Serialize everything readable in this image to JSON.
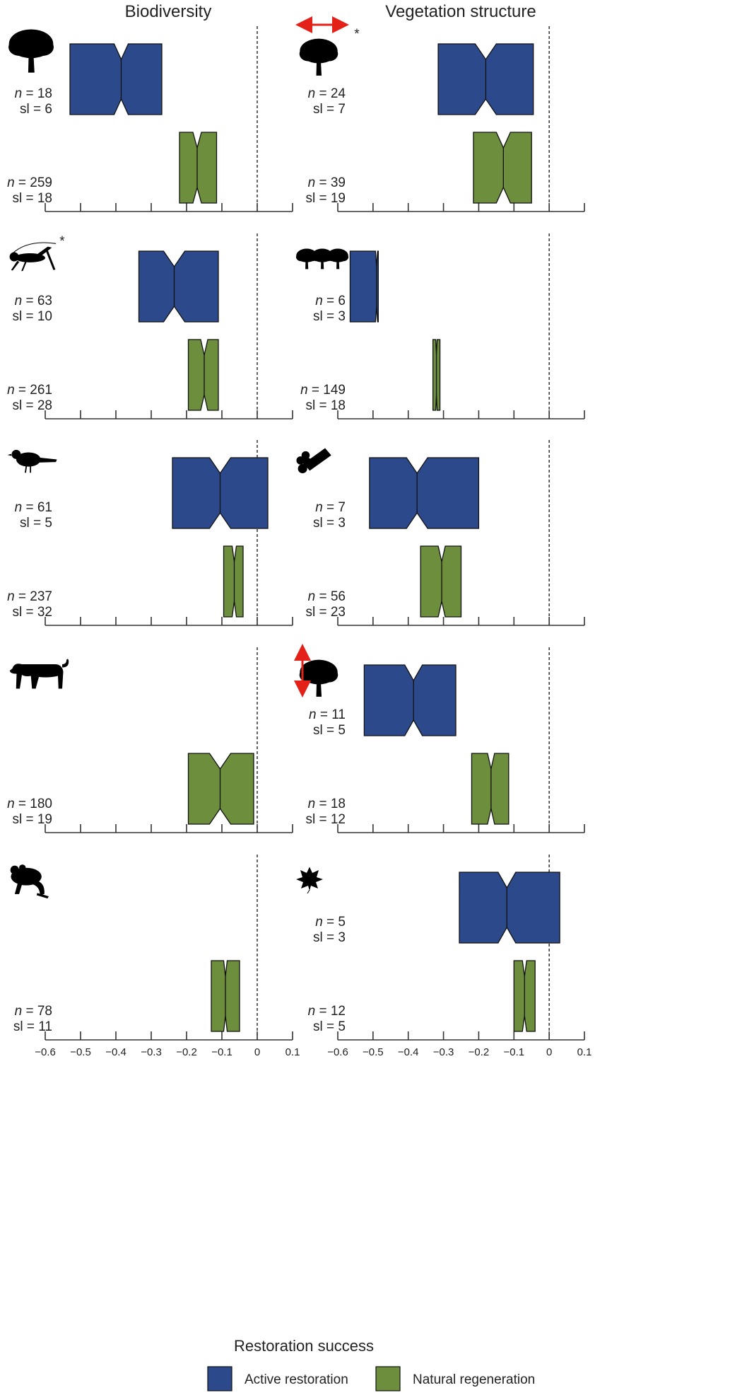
{
  "columns": [
    {
      "title": "Biodiversity"
    },
    {
      "title": "Vegetation structure"
    }
  ],
  "x_axis_label": "Restoration success",
  "legend": [
    {
      "label": "Active restoration",
      "color": "#2c4a8b"
    },
    {
      "label": "Natural regeneration",
      "color": "#6c8e3d"
    }
  ],
  "colors": {
    "active": "#2c4a8b",
    "natural": "#6c8e3d",
    "arrow": "#e32119"
  },
  "chart_data": {
    "type": "box",
    "xlim": [
      -0.6,
      0.1
    ],
    "x_ticks": [
      "−0.6",
      "−0.5",
      "−0.4",
      "−0.3",
      "−0.2",
      "−0.1",
      "0",
      "0.1"
    ],
    "reference_line_x": 0,
    "panels": [
      {
        "column": 0,
        "row": 0,
        "icon": "oak-tree-icon",
        "asterisk": false,
        "active": {
          "q1": -0.53,
          "q3": -0.27,
          "median": -0.385,
          "notch": 0.02,
          "n": "18",
          "sl": "6"
        },
        "natural": {
          "q1": -0.22,
          "q3": -0.115,
          "median": -0.17,
          "notch": 0.012,
          "n": "259",
          "sl": "18"
        }
      },
      {
        "column": 1,
        "row": 0,
        "icon": "tree-width-icon",
        "asterisk": true,
        "active": {
          "q1": -0.315,
          "q3": -0.045,
          "median": -0.18,
          "notch": 0.03,
          "n": "24",
          "sl": "7"
        },
        "natural": {
          "q1": -0.215,
          "q3": -0.05,
          "median": -0.13,
          "notch": 0.02,
          "n": "39",
          "sl": "19"
        }
      },
      {
        "column": 0,
        "row": 1,
        "icon": "grasshopper-icon",
        "asterisk": true,
        "active": {
          "q1": -0.335,
          "q3": -0.11,
          "median": -0.235,
          "notch": 0.03,
          "n": "63",
          "sl": "10"
        },
        "natural": {
          "q1": -0.195,
          "q3": -0.11,
          "median": -0.15,
          "notch": 0.01,
          "n": "261",
          "sl": "28"
        }
      },
      {
        "column": 1,
        "row": 1,
        "icon": "tree-stand-icon",
        "asterisk": false,
        "active": {
          "q1": -0.565,
          "q3": -0.485,
          "median": -0.49,
          "notch": 0.003,
          "n": "6",
          "sl": "3"
        },
        "natural": {
          "q1": -0.33,
          "q3": -0.31,
          "median": -0.32,
          "notch": 0.002,
          "n": "149",
          "sl": "18"
        }
      },
      {
        "column": 0,
        "row": 2,
        "icon": "bird-icon",
        "asterisk": false,
        "active": {
          "q1": -0.24,
          "q3": 0.03,
          "median": -0.105,
          "notch": 0.03,
          "n": "61",
          "sl": "5"
        },
        "natural": {
          "q1": -0.095,
          "q3": -0.04,
          "median": -0.065,
          "notch": 0.006,
          "n": "237",
          "sl": "32"
        }
      },
      {
        "column": 1,
        "row": 2,
        "icon": "log-pile-icon",
        "asterisk": false,
        "active": {
          "q1": -0.51,
          "q3": -0.2,
          "median": -0.375,
          "notch": 0.03,
          "n": "7",
          "sl": "3"
        },
        "natural": {
          "q1": -0.365,
          "q3": -0.25,
          "median": -0.305,
          "notch": 0.01,
          "n": "56",
          "sl": "23"
        }
      },
      {
        "column": 0,
        "row": 3,
        "icon": "big-cat-icon",
        "asterisk": false,
        "active": null,
        "natural": {
          "q1": -0.195,
          "q3": -0.01,
          "median": -0.105,
          "notch": 0.03,
          "n": "180",
          "sl": "19"
        }
      },
      {
        "column": 1,
        "row": 3,
        "icon": "tree-height-icon",
        "asterisk": false,
        "active": {
          "q1": -0.525,
          "q3": -0.265,
          "median": -0.385,
          "notch": 0.025,
          "n": "11",
          "sl": "5"
        },
        "natural": {
          "q1": -0.22,
          "q3": -0.115,
          "median": -0.165,
          "notch": 0.01,
          "n": "18",
          "sl": "12"
        }
      },
      {
        "column": 0,
        "row": 4,
        "icon": "frog-icon",
        "asterisk": false,
        "active": null,
        "natural": {
          "q1": -0.13,
          "q3": -0.05,
          "median": -0.09,
          "notch": 0.005,
          "n": "78",
          "sl": "11"
        }
      },
      {
        "column": 1,
        "row": 4,
        "icon": "leaf-icon",
        "asterisk": false,
        "active": {
          "q1": -0.255,
          "q3": 0.03,
          "median": -0.12,
          "notch": 0.025,
          "n": "5",
          "sl": "3"
        },
        "natural": {
          "q1": -0.1,
          "q3": -0.04,
          "median": -0.07,
          "notch": 0.006,
          "n": "12",
          "sl": "5"
        }
      }
    ]
  }
}
